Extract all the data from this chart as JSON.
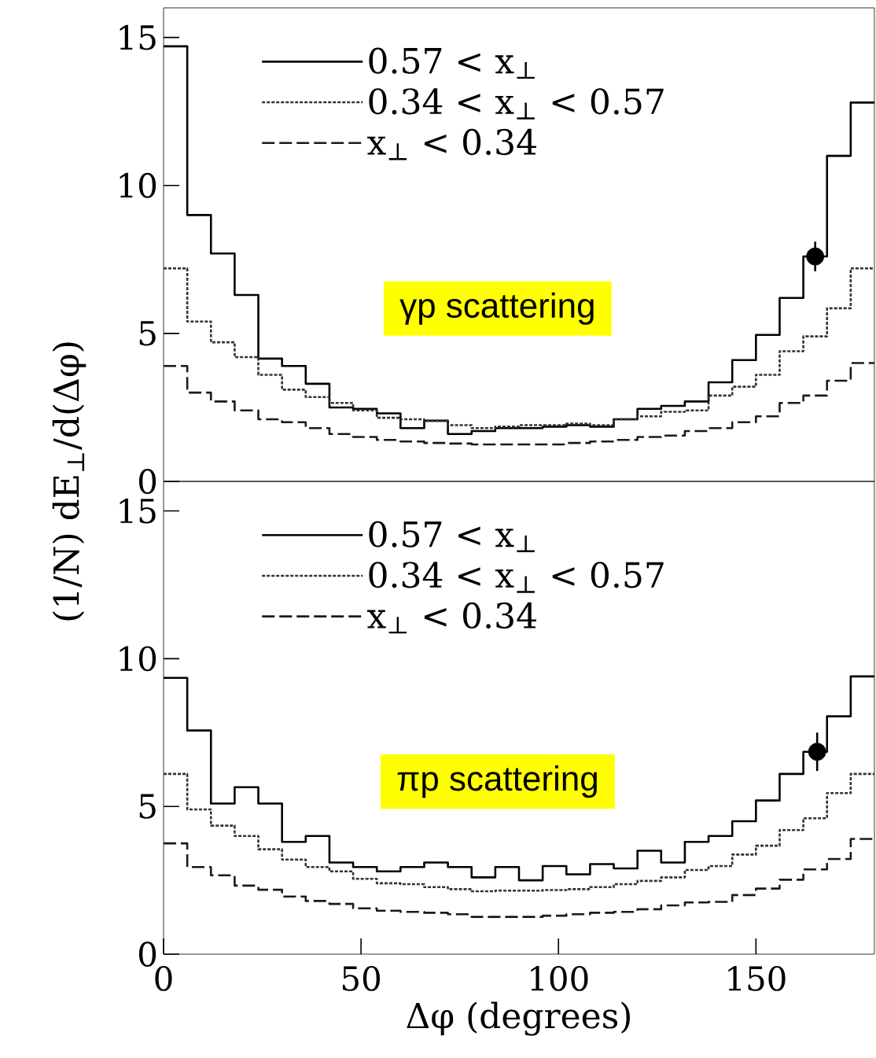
{
  "chart_data": [
    {
      "type": "histogram",
      "ylabel": "(1/N) dE$_{⊥}$/d(Δφ)",
      "annotations": [
        "γp scattering"
      ],
      "xlim": [
        0,
        180
      ],
      "ylim": [
        0,
        16
      ],
      "yticks": [
        0,
        5,
        10,
        15
      ],
      "tick_labels": "y",
      "legend": "top left",
      "marker": "circle",
      "bins": [
        0,
        6,
        12,
        18,
        24,
        30,
        36,
        42,
        48,
        54,
        60,
        66,
        72,
        78,
        84,
        90,
        96,
        102,
        108,
        114,
        120,
        126,
        132,
        138,
        144,
        150,
        156,
        162,
        168,
        174,
        180
      ],
      "series": [
        {
          "name": "0.57 < x$_{⊥}$",
          "color": "#000000",
          "line_style": "solid",
          "values": [
            14.7,
            9.0,
            7.7,
            6.3,
            4.15,
            3.9,
            3.3,
            2.5,
            2.45,
            2.3,
            1.8,
            2.05,
            1.6,
            1.7,
            1.8,
            1.8,
            1.85,
            1.9,
            1.85,
            2.1,
            2.45,
            2.55,
            2.7,
            3.35,
            4.1,
            4.95,
            6.2,
            7.6,
            11.0,
            12.8
          ]
        },
        {
          "name": "0.34 < x$_{⊥}$ < 0.57",
          "color": "#333333",
          "line_style": "dotted",
          "values": [
            7.2,
            5.4,
            4.7,
            4.2,
            3.6,
            3.1,
            2.85,
            2.65,
            2.4,
            2.15,
            2.1,
            2.05,
            1.9,
            1.8,
            1.85,
            1.9,
            1.9,
            1.95,
            1.9,
            2.1,
            2.2,
            2.35,
            2.4,
            2.9,
            3.2,
            3.6,
            4.4,
            4.9,
            5.85,
            7.2
          ]
        },
        {
          "name": "x$_{⊥}$ < 0.34",
          "color": "#1a1a1a",
          "line_style": "dashed",
          "values": [
            3.9,
            3.0,
            2.7,
            2.4,
            2.1,
            2.0,
            1.8,
            1.6,
            1.5,
            1.4,
            1.35,
            1.3,
            1.28,
            1.25,
            1.25,
            1.25,
            1.25,
            1.3,
            1.35,
            1.4,
            1.5,
            1.55,
            1.7,
            1.8,
            2.0,
            2.2,
            2.65,
            2.9,
            3.4,
            4.0
          ]
        },
        {
          "type": "scatter",
          "color": "#000000",
          "x": [
            165
          ],
          "values": [
            7.6
          ],
          "errors": [
            0.5
          ]
        }
      ]
    },
    {
      "type": "histogram",
      "xlabel": "Δφ (degrees)",
      "annotations": [
        "πp scattering"
      ],
      "xlim": [
        0,
        180
      ],
      "ylim": [
        0,
        16
      ],
      "xticks": [
        0,
        50,
        100,
        150
      ],
      "yticks": [
        0,
        5,
        10,
        15
      ],
      "legend": "top left",
      "marker": "circle",
      "bins": [
        0,
        6,
        12,
        18,
        24,
        30,
        36,
        42,
        48,
        54,
        60,
        66,
        72,
        78,
        84,
        90,
        96,
        102,
        108,
        114,
        120,
        126,
        132,
        138,
        144,
        150,
        156,
        162,
        168,
        174,
        180
      ],
      "series": [
        {
          "name": "0.57 < x$_{⊥}$",
          "color": "#000000",
          "line_style": "solid",
          "values": [
            9.35,
            7.57,
            5.1,
            5.65,
            5.1,
            3.8,
            4.0,
            3.1,
            2.95,
            2.8,
            2.95,
            3.1,
            2.95,
            2.6,
            2.95,
            2.5,
            2.98,
            2.7,
            3.05,
            2.9,
            3.5,
            3.1,
            3.8,
            4.0,
            4.5,
            5.2,
            6.1,
            6.85,
            8.05,
            9.4
          ]
        },
        {
          "name": "0.34 < x$_{⊥}$ < 0.57",
          "color": "#333333",
          "line_style": "dotted",
          "values": [
            6.1,
            4.9,
            4.35,
            4.0,
            3.55,
            3.2,
            2.95,
            2.8,
            2.55,
            2.4,
            2.37,
            2.27,
            2.2,
            2.13,
            2.15,
            2.15,
            2.17,
            2.2,
            2.27,
            2.37,
            2.48,
            2.6,
            2.85,
            2.98,
            3.37,
            3.67,
            4.2,
            4.6,
            5.45,
            6.1
          ]
        },
        {
          "name": "x$_{⊥}$ < 0.34",
          "color": "#1a1a1a",
          "line_style": "dashed",
          "values": [
            3.75,
            2.95,
            2.67,
            2.32,
            2.18,
            1.95,
            1.8,
            1.7,
            1.55,
            1.47,
            1.43,
            1.4,
            1.35,
            1.26,
            1.26,
            1.26,
            1.3,
            1.35,
            1.4,
            1.43,
            1.52,
            1.65,
            1.75,
            1.77,
            2.0,
            2.22,
            2.52,
            2.87,
            3.22,
            3.9
          ]
        },
        {
          "type": "scatter",
          "color": "#000000",
          "x": [
            165.5
          ],
          "values": [
            6.85
          ],
          "errors": [
            0.65
          ]
        }
      ]
    }
  ]
}
